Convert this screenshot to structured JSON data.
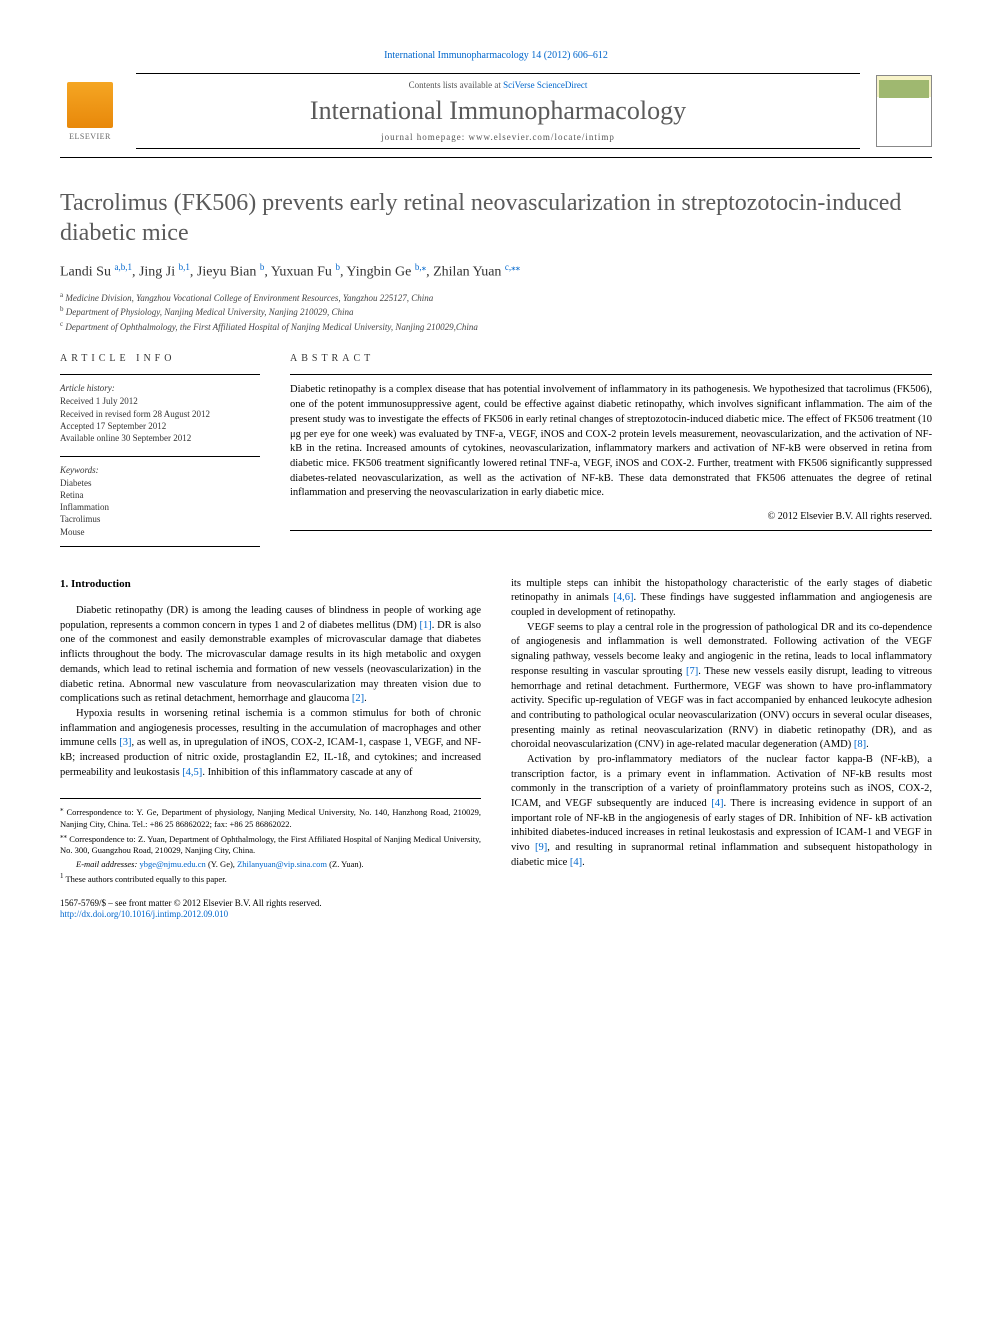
{
  "journal_ref": {
    "link_text": "International Immunopharmacology 14 (2012) 606–612"
  },
  "header": {
    "contents_prefix": "Contents lists available at ",
    "contents_link": "SciVerse ScienceDirect",
    "journal_name": "International Immunopharmacology",
    "homepage": "journal homepage: www.elsevier.com/locate/intimp",
    "elsevier_label": "ELSEVIER"
  },
  "article": {
    "title": "Tacrolimus (FK506) prevents early retinal neovascularization in streptozotocin-induced diabetic mice",
    "authors_html": "Landi Su <sup>a,b,1</sup>, Jing Ji <sup>b,1</sup>, Jieyu Bian <sup>b</sup>, Yuxuan Fu <sup>b</sup>, Yingbin Ge <sup>b,⁎</sup>, Zhilan Yuan <sup>c,⁎⁎</sup>",
    "authors": [
      {
        "name": "Landi Su ",
        "sup": "a,b,1",
        "supcolor": "blue"
      },
      {
        "name": ", Jing Ji ",
        "sup": "b,1",
        "supcolor": "blue"
      },
      {
        "name": ", Jieyu Bian ",
        "sup": "b",
        "supcolor": "blue"
      },
      {
        "name": ", Yuxuan Fu ",
        "sup": "b",
        "supcolor": "blue"
      },
      {
        "name": ", Yingbin Ge ",
        "sup": "b,",
        "supcolor": "blue",
        "star": "⁎"
      },
      {
        "name": ", Zhilan Yuan ",
        "sup": "c,",
        "supcolor": "blue",
        "star": "⁎⁎"
      }
    ],
    "affiliations": [
      {
        "sup": "a",
        "text": " Medicine Division, Yangzhou Vocational College of Environment Resources, Yangzhou 225127, China"
      },
      {
        "sup": "b",
        "text": " Department of Physiology, Nanjing Medical University, Nanjing 210029, China"
      },
      {
        "sup": "c",
        "text": " Department of Ophthalmology, the First Affiliated Hospital of Nanjing Medical University, Nanjing 210029,China"
      }
    ]
  },
  "info": {
    "label": "article info",
    "history_label": "Article history:",
    "history": [
      "Received 1 July 2012",
      "Received in revised form 28 August 2012",
      "Accepted 17 September 2012",
      "Available online 30 September 2012"
    ],
    "keywords_label": "Keywords:",
    "keywords": [
      "Diabetes",
      "Retina",
      "Inflammation",
      "Tacrolimus",
      "Mouse"
    ]
  },
  "abstract": {
    "label": "abstract",
    "text": "Diabetic retinopathy is a complex disease that has potential involvement of inflammatory in its pathogenesis. We hypothesized that tacrolimus (FK506), one of the potent immunosuppressive agent, could be effective against diabetic retinopathy, which involves significant inflammation. The aim of the present study was to investigate the effects of FK506 in early retinal changes of streptozotocin-induced diabetic mice. The effect of FK506 treatment (10 μg per eye for one week) was evaluated by TNF-a, VEGF, iNOS and COX-2 protein levels measurement, neovascularization, and the activation of NF-kB in the retina. Increased amounts of cytokines, neovascularization, inflammatory markers and activation of NF-kB were observed in retina from diabetic mice. FK506 treatment significantly lowered retinal TNF-a, VEGF, iNOS and COX-2. Further, treatment with FK506 significantly suppressed diabetes-related neovascularization, as well as the activation of NF-kB. These data demonstrated that FK506 attenuates the degree of retinal inflammation and preserving the neovascularization in early diabetic mice.",
    "copyright": "© 2012 Elsevier B.V. All rights reserved."
  },
  "body": {
    "heading1": "1. Introduction",
    "left": {
      "p1a": "Diabetic retinopathy (DR) is among the leading causes of blindness in people of working age population, represents a common concern in types 1 and 2 of diabetes mellitus (DM) ",
      "c1": "[1]",
      "p1b": ". DR is also one of the commonest and easily demonstrable examples of microvascular damage that diabetes inflicts throughout the body. The microvascular damage results in its high metabolic and oxygen demands, which lead to retinal ischemia and formation of new vessels (neovascularization) in the diabetic retina. Abnormal new vasculature from neovascularization may threaten vision due to complications such as retinal detachment, hemorrhage and glaucoma ",
      "c2": "[2]",
      "p1c": ".",
      "p2a": "Hypoxia results in worsening retinal ischemia is a common stimulus for both of chronic inflammation and angiogenesis processes, resulting in the accumulation of macrophages and other immune cells ",
      "c3": "[3]",
      "p2b": ", as well as, in upregulation of iNOS, COX-2, ICAM-1, caspase 1, VEGF, and NF-kB; increased production of nitric oxide, prostaglandin E2, IL-1ß, and cytokines; and increased permeability and leukostasis ",
      "c45": "[4,5]",
      "p2c": ". Inhibition of this inflammatory cascade at any of"
    },
    "right": {
      "p1a": "its multiple steps can inhibit the histopathology characteristic of the early stages of diabetic retinopathy in animals ",
      "c46": "[4,6]",
      "p1b": ". These findings have suggested inflammation and angiogenesis are coupled in development of retinopathy.",
      "p2a": "VEGF seems to play a central role in the progression of pathological DR and its co-dependence of angiogenesis and inflammation is well demonstrated. Following activation of the VEGF signaling pathway, vessels become leaky and angiogenic in the retina, leads to local inflammatory response resulting in vascular sprouting ",
      "c7": "[7]",
      "p2b": ". These new vessels easily disrupt, leading to vitreous hemorrhage and retinal detachment. Furthermore, VEGF was shown to have pro-inflammatory activity. Specific up-regulation of VEGF was in fact accompanied by enhanced leukocyte adhesion and contributing to pathological ocular neovascularization (ONV) occurs in several ocular diseases, presenting mainly as retinal neovascularization (RNV) in diabetic retinopathy (DR), and as choroidal neovascularization (CNV) in age-related macular degeneration (AMD) ",
      "c8": "[8]",
      "p2c": ".",
      "p3a": "Activation by pro-inflammatory mediators of the nuclear factor kappa-B (NF-kB), a transcription factor, is a primary event in inflammation. Activation of NF-kB results most commonly in the transcription of a variety of proinflammatory proteins such as iNOS, COX-2, ICAM, and VEGF subsequently are induced ",
      "c4": "[4]",
      "p3b": ". There is increasing evidence in support of an important role of NF-kB in the angiogenesis of early stages of DR. Inhibition of NF- kB activation inhibited diabetes-induced increases in retinal leukostasis and expression of ICAM-1 and VEGF in vivo ",
      "c9": "[9]",
      "p3c": ", and resulting in supranormal retinal inflammation and subsequent histopathology in diabetic mice ",
      "c4b": "[4]",
      "p3d": "."
    }
  },
  "footnotes": {
    "f1": {
      "sym": "⁎",
      "text": " Correspondence to: Y. Ge, Department of physiology, Nanjing Medical University, No. 140, Hanzhong Road, 210029, Nanjing City, China. Tel.: +86 25 86862022; fax: +86 25 86862022."
    },
    "f2": {
      "sym": "⁎⁎",
      "text": " Correspondence to: Z. Yuan, Department of Ophthalmology, the First Affiliated Hospital of Nanjing Medical University, No. 300, Guangzhou Road, 210029, Nanjing City, China."
    },
    "f3_label": "E-mail addresses: ",
    "f3_email1": "ybge@njmu.edu.cn",
    "f3_name1": " (Y. Ge), ",
    "f3_email2": "Zhilanyuan@vip.sina.com",
    "f3_name2": " (Z. Yuan).",
    "f4": {
      "sym": "1",
      "text": " These authors contributed equally to this paper."
    }
  },
  "doi": {
    "line1": "1567-5769/$ – see front matter © 2012 Elsevier B.V. All rights reserved.",
    "line2": "http://dx.doi.org/10.1016/j.intimp.2012.09.010"
  },
  "colors": {
    "link": "#0066cc",
    "title_gray": "#5a5a5a",
    "elsevier_orange": "#e8880a"
  }
}
